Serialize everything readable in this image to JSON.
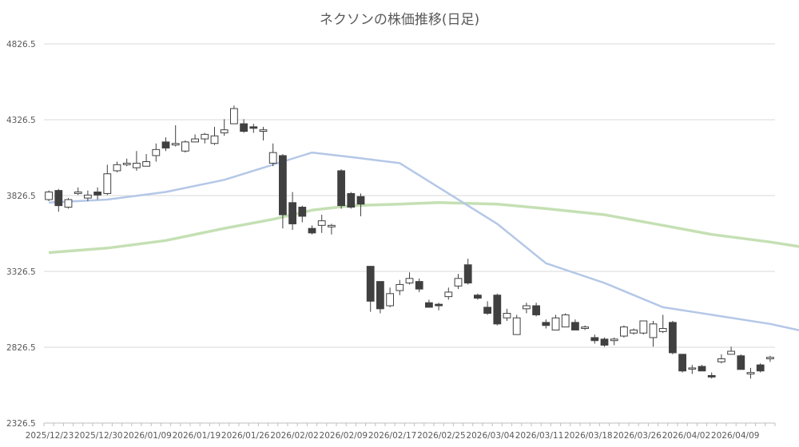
{
  "chart_data": {
    "type": "candlestick",
    "title": "ネクソンの株価推移(日足)",
    "ylim": [
      2326.5,
      4826.5
    ],
    "y_ticks": [
      "4826.5",
      "4326.5",
      "3826.5",
      "3326.5",
      "2826.5",
      "2326.5"
    ],
    "x_ticks": [
      "2025/12/23",
      "2025/12/30",
      "2026/01/09",
      "2026/01/19",
      "2026/01/26",
      "2026/02/02",
      "2026/02/09",
      "2026/02/17",
      "2026/02/25",
      "2026/03/04",
      "2026/03/11",
      "2026/03/18",
      "2026/03/26",
      "2026/04/02",
      "2026/04/09"
    ],
    "grid": true,
    "colors": {
      "up_fill": "#ffffff",
      "down_fill": "#404040",
      "candle_stroke": "#404040",
      "ma_short": "#b4c7e7",
      "ma_long": "#c5e0b4"
    },
    "candles": [
      [
        3800,
        3850,
        3860,
        3790
      ],
      [
        3860,
        3760,
        3870,
        3720
      ],
      [
        3750,
        3800,
        3810,
        3740
      ],
      [
        3840,
        3850,
        3880,
        3830
      ],
      [
        3810,
        3830,
        3860,
        3790
      ],
      [
        3850,
        3830,
        3880,
        3800
      ],
      [
        3840,
        3970,
        4030,
        3830
      ],
      [
        3990,
        4030,
        4050,
        3980
      ],
      [
        4030,
        4040,
        4070,
        4020
      ],
      [
        4010,
        4040,
        4120,
        3990
      ],
      [
        4020,
        4050,
        4100,
        4020
      ],
      [
        4090,
        4130,
        4170,
        4050
      ],
      [
        4180,
        4140,
        4210,
        4120
      ],
      [
        4160,
        4170,
        4290,
        4150
      ],
      [
        4120,
        4180,
        4190,
        4110
      ],
      [
        4180,
        4200,
        4230,
        4180
      ],
      [
        4200,
        4230,
        4240,
        4170
      ],
      [
        4170,
        4220,
        4280,
        4160
      ],
      [
        4240,
        4260,
        4330,
        4220
      ],
      [
        4300,
        4400,
        4420,
        4300
      ],
      [
        4300,
        4250,
        4330,
        4240
      ],
      [
        4280,
        4270,
        4300,
        4240
      ],
      [
        4250,
        4260,
        4280,
        4190
      ],
      [
        4040,
        4110,
        4170,
        4020
      ],
      [
        4090,
        3700,
        4100,
        3610
      ],
      [
        3780,
        3640,
        3850,
        3600
      ],
      [
        3750,
        3690,
        3760,
        3650
      ],
      [
        3610,
        3580,
        3630,
        3570
      ],
      [
        3630,
        3660,
        3700,
        3580
      ],
      [
        3620,
        3630,
        3640,
        3570
      ],
      [
        3990,
        3760,
        4000,
        3740
      ],
      [
        3840,
        3750,
        3850,
        3740
      ],
      [
        3820,
        3770,
        3840,
        3690
      ],
      [
        3360,
        3130,
        3360,
        3060
      ],
      [
        3260,
        3080,
        3260,
        3050
      ],
      [
        3100,
        3180,
        3220,
        3090
      ],
      [
        3200,
        3240,
        3270,
        3170
      ],
      [
        3250,
        3280,
        3320,
        3240
      ],
      [
        3260,
        3210,
        3280,
        3190
      ],
      [
        3120,
        3090,
        3140,
        3090
      ],
      [
        3110,
        3100,
        3120,
        3070
      ],
      [
        3160,
        3190,
        3220,
        3140
      ],
      [
        3230,
        3280,
        3310,
        3210
      ],
      [
        3370,
        3250,
        3410,
        3240
      ],
      [
        3170,
        3150,
        3180,
        3140
      ],
      [
        3090,
        3050,
        3130,
        3040
      ],
      [
        3170,
        2980,
        3180,
        2970
      ],
      [
        3020,
        3050,
        3080,
        3000
      ],
      [
        2910,
        3020,
        3040,
        2910
      ],
      [
        3080,
        3100,
        3120,
        3050
      ],
      [
        3100,
        3040,
        3120,
        3030
      ],
      [
        2990,
        2970,
        3010,
        2950
      ],
      [
        2940,
        3020,
        3040,
        2940
      ],
      [
        2960,
        3040,
        3050,
        2960
      ],
      [
        2990,
        2940,
        3010,
        2940
      ],
      [
        2950,
        2960,
        2970,
        2940
      ],
      [
        2890,
        2870,
        2910,
        2850
      ],
      [
        2880,
        2840,
        2890,
        2830
      ],
      [
        2870,
        2880,
        2890,
        2840
      ],
      [
        2900,
        2960,
        2970,
        2890
      ],
      [
        2920,
        2940,
        2950,
        2910
      ],
      [
        2920,
        3000,
        3000,
        2910
      ],
      [
        2890,
        2980,
        3000,
        2830
      ],
      [
        2930,
        2950,
        3040,
        2920
      ],
      [
        2990,
        2790,
        3000,
        2780
      ],
      [
        2780,
        2670,
        2780,
        2660
      ],
      [
        2690,
        2690,
        2710,
        2650
      ],
      [
        2700,
        2670,
        2710,
        2670
      ],
      [
        2640,
        2630,
        2660,
        2620
      ],
      [
        2730,
        2750,
        2780,
        2720
      ],
      [
        2780,
        2800,
        2830,
        2780
      ],
      [
        2770,
        2680,
        2780,
        2680
      ],
      [
        2650,
        2660,
        2690,
        2620
      ],
      [
        2710,
        2670,
        2720,
        2660
      ],
      [
        2750,
        2760,
        2770,
        2730
      ]
    ],
    "ma_short": [
      [
        0,
        3780
      ],
      [
        6,
        3800
      ],
      [
        12,
        3850
      ],
      [
        18,
        3930
      ],
      [
        23,
        4030
      ],
      [
        27,
        4110
      ],
      [
        31,
        4080
      ],
      [
        36,
        4040
      ],
      [
        40,
        3880
      ],
      [
        46,
        3640
      ],
      [
        51,
        3380
      ],
      [
        57,
        3250
      ],
      [
        63,
        3090
      ],
      [
        68,
        3040
      ],
      [
        74,
        2980
      ],
      [
        79,
        2910
      ],
      [
        85,
        2870
      ],
      [
        89,
        2850
      ]
    ],
    "ma_long": [
      [
        0,
        3450
      ],
      [
        6,
        3480
      ],
      [
        12,
        3530
      ],
      [
        18,
        3610
      ],
      [
        23,
        3670
      ],
      [
        27,
        3730
      ],
      [
        31,
        3760
      ],
      [
        36,
        3770
      ],
      [
        40,
        3780
      ],
      [
        46,
        3770
      ],
      [
        51,
        3740
      ],
      [
        57,
        3700
      ],
      [
        63,
        3630
      ],
      [
        68,
        3570
      ],
      [
        74,
        3520
      ],
      [
        79,
        3470
      ],
      [
        85,
        3400
      ],
      [
        89,
        3370
      ]
    ]
  }
}
